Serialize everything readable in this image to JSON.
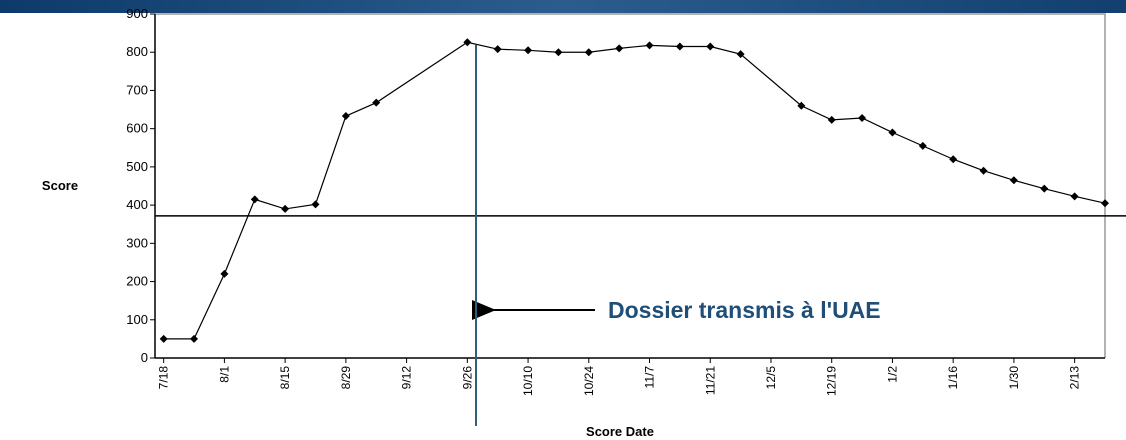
{
  "chart_data": {
    "type": "line",
    "y_label": "Score",
    "x_label": "Score Date",
    "annotation": "Dossier transmis à l'UAE",
    "x": [
      0,
      7,
      14,
      21,
      28,
      35,
      42,
      49,
      70,
      77,
      84,
      91,
      98,
      105,
      112,
      119,
      126,
      133,
      147,
      154,
      161,
      168,
      175,
      182,
      189,
      196,
      203,
      210,
      217
    ],
    "series": [
      {
        "name": "Score",
        "color": "#000000",
        "values": [
          50,
          50,
          220,
          415,
          390,
          402,
          633,
          668,
          826,
          808,
          805,
          800,
          800,
          810,
          818,
          815,
          815,
          795,
          660,
          623,
          628,
          590,
          555,
          520,
          490,
          465,
          443,
          423,
          405
        ]
      }
    ],
    "reference_y": 372,
    "marker_x": 72,
    "xlim": [
      -2,
      217
    ],
    "xticks": [
      {
        "value": 0,
        "label": "7/18"
      },
      {
        "value": 14,
        "label": "8/1"
      },
      {
        "value": 28,
        "label": "8/15"
      },
      {
        "value": 42,
        "label": "8/29"
      },
      {
        "value": 56,
        "label": "9/12"
      },
      {
        "value": 70,
        "label": "9/26"
      },
      {
        "value": 84,
        "label": "10/10"
      },
      {
        "value": 98,
        "label": "10/24"
      },
      {
        "value": 112,
        "label": "11/7"
      },
      {
        "value": 126,
        "label": "11/21"
      },
      {
        "value": 140,
        "label": "12/5"
      },
      {
        "value": 154,
        "label": "12/19"
      },
      {
        "value": 168,
        "label": "1/2"
      },
      {
        "value": 182,
        "label": "1/16"
      },
      {
        "value": 196,
        "label": "1/30"
      },
      {
        "value": 210,
        "label": "2/13"
      }
    ],
    "ylim": [
      0,
      900
    ],
    "yticks": [
      0,
      100,
      200,
      300,
      400,
      500,
      600,
      700,
      800,
      900
    ]
  }
}
